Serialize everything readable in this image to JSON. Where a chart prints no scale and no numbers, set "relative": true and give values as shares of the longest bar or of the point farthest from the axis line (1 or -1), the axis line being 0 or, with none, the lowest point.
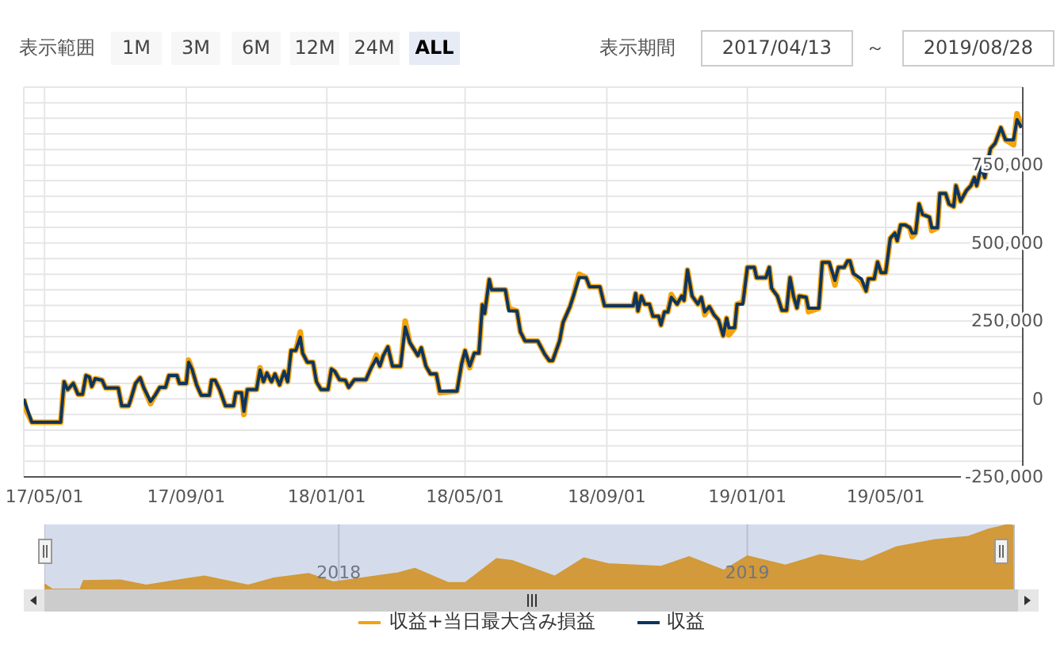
{
  "chart_data": [
    {
      "type": "line",
      "annotations": [
        "表示範囲",
        "1M",
        "3M",
        "6M",
        "12M",
        "24M",
        "ALL",
        "表示期間",
        "2017/04/13",
        "～",
        "2019/08/28"
      ],
      "x": [
        "2017-04-13",
        "2017-04-15",
        "2017-04-20",
        "2017-05-15",
        "2017-05-18",
        "2017-05-21",
        "2017-05-26",
        "2017-05-30",
        "2017-06-03",
        "2017-06-06",
        "2017-06-09",
        "2017-06-11",
        "2017-06-14",
        "2017-06-20",
        "2017-06-23",
        "2017-07-04",
        "2017-07-07",
        "2017-07-13",
        "2017-07-15",
        "2017-07-19",
        "2017-07-23",
        "2017-07-26",
        "2017-08-01",
        "2017-08-05",
        "2017-08-09",
        "2017-08-14",
        "2017-08-17",
        "2017-08-24",
        "2017-08-26",
        "2017-09-01",
        "2017-09-03",
        "2017-09-06",
        "2017-09-10",
        "2017-09-14",
        "2017-09-21",
        "2017-09-23",
        "2017-09-26",
        "2017-09-30",
        "2017-10-05",
        "2017-10-12",
        "2017-10-14",
        "2017-10-19",
        "2017-10-21",
        "2017-10-24",
        "2017-11-01",
        "2017-11-04",
        "2017-11-07",
        "2017-11-10",
        "2017-11-14",
        "2017-11-17",
        "2017-11-21",
        "2017-11-25",
        "2017-11-28",
        "2017-12-01",
        "2017-12-05",
        "2017-12-09",
        "2017-12-11",
        "2017-12-15",
        "2017-12-20",
        "2017-12-23",
        "2017-12-27",
        "2018-01-02",
        "2018-01-05",
        "2018-01-08",
        "2018-01-12",
        "2018-01-17",
        "2018-01-20",
        "2018-01-25",
        "2018-02-04",
        "2018-02-08",
        "2018-02-13",
        "2018-02-16",
        "2018-02-19",
        "2018-02-23",
        "2018-02-27",
        "2018-03-06",
        "2018-03-10",
        "2018-03-14",
        "2018-03-21",
        "2018-03-24",
        "2018-03-28",
        "2018-04-01",
        "2018-04-06",
        "2018-04-09",
        "2018-04-24",
        "2018-04-28",
        "2018-05-01",
        "2018-05-05",
        "2018-05-09",
        "2018-05-13",
        "2018-05-16",
        "2018-05-18",
        "2018-05-22",
        "2018-05-24",
        "2018-06-05",
        "2018-06-08",
        "2018-06-15",
        "2018-06-18",
        "2018-06-22",
        "2018-06-26",
        "2018-07-03",
        "2018-07-09",
        "2018-07-13",
        "2018-07-16",
        "2018-07-22",
        "2018-07-25",
        "2018-07-31",
        "2018-08-03",
        "2018-08-08",
        "2018-08-14",
        "2018-08-17",
        "2018-08-26",
        "2018-08-30",
        "2018-09-24",
        "2018-09-26",
        "2018-09-28",
        "2018-10-01",
        "2018-10-04",
        "2018-10-08",
        "2018-10-11",
        "2018-10-16",
        "2018-10-18",
        "2018-10-21",
        "2018-10-24",
        "2018-10-27",
        "2018-11-01",
        "2018-11-05",
        "2018-11-07",
        "2018-11-10",
        "2018-11-14",
        "2018-11-19",
        "2018-11-22",
        "2018-11-25",
        "2018-11-29",
        "2018-12-03",
        "2018-12-07",
        "2018-12-11",
        "2018-12-14",
        "2018-12-16",
        "2018-12-21",
        "2018-12-23",
        "2018-12-28",
        "2019-01-01",
        "2019-01-07",
        "2019-01-09",
        "2019-01-17",
        "2019-01-20",
        "2019-01-22",
        "2019-01-27",
        "2019-01-31",
        "2019-02-04",
        "2019-02-07",
        "2019-02-10",
        "2019-02-13",
        "2019-02-15",
        "2019-02-21",
        "2019-02-23",
        "2019-03-04",
        "2019-03-07",
        "2019-03-13",
        "2019-03-18",
        "2019-03-21",
        "2019-03-26",
        "2019-03-29",
        "2019-03-31",
        "2019-04-03",
        "2019-04-10",
        "2019-04-14",
        "2019-04-16",
        "2019-04-21",
        "2019-04-24",
        "2019-04-27",
        "2019-05-01",
        "2019-05-05",
        "2019-05-09",
        "2019-05-11",
        "2019-05-14",
        "2019-05-18",
        "2019-05-22",
        "2019-05-24",
        "2019-05-27",
        "2019-05-30",
        "2019-06-02",
        "2019-06-08",
        "2019-06-10",
        "2019-06-15",
        "2019-06-17",
        "2019-06-22",
        "2019-06-25",
        "2019-06-29",
        "2019-07-01",
        "2019-07-05",
        "2019-07-10",
        "2019-07-14",
        "2019-07-17",
        "2019-07-19",
        "2019-07-23",
        "2019-07-26",
        "2019-07-31",
        "2019-08-04",
        "2019-08-09",
        "2019-08-13",
        "2019-08-20",
        "2019-08-23",
        "2019-08-27"
      ],
      "series": [
        {
          "name": "収益+当日最大含み損益",
          "color": "#f5a30a",
          "values": [
            0,
            -35000,
            -75000,
            -75000,
            55000,
            30000,
            50000,
            15000,
            15000,
            75000,
            70000,
            40000,
            65000,
            60000,
            35000,
            35000,
            -22000,
            -22000,
            0,
            50000,
            68000,
            37000,
            -15000,
            12000,
            37000,
            37000,
            75000,
            75000,
            50000,
            50000,
            125000,
            96000,
            45000,
            12000,
            12000,
            60000,
            60000,
            30000,
            -22000,
            -22000,
            20000,
            20000,
            -50000,
            30000,
            30000,
            100000,
            55000,
            83000,
            55000,
            80000,
            45000,
            88000,
            55000,
            155000,
            155000,
            215000,
            147000,
            118000,
            118000,
            55000,
            30000,
            30000,
            96000,
            88000,
            62000,
            60000,
            37000,
            62000,
            62000,
            96000,
            140000,
            105000,
            139000,
            167000,
            105000,
            105000,
            250000,
            181000,
            139000,
            164000,
            105000,
            80000,
            80000,
            20000,
            25000,
            113000,
            155000,
            100000,
            147000,
            147000,
            302000,
            274000,
            383000,
            350000,
            350000,
            290000,
            282000,
            215000,
            186000,
            186000,
            186000,
            144000,
            123000,
            123000,
            186000,
            245000,
            296000,
            330000,
            400000,
            389000,
            360000,
            360000,
            299000,
            299000,
            338000,
            282000,
            330000,
            304000,
            304000,
            265000,
            265000,
            237000,
            279000,
            279000,
            335000,
            304000,
            330000,
            316000,
            414000,
            330000,
            304000,
            326000,
            270000,
            296000,
            270000,
            253000,
            203000,
            259000,
            205000,
            228000,
            304000,
            310000,
            422000,
            422000,
            389000,
            389000,
            422000,
            355000,
            330000,
            284000,
            284000,
            389000,
            330000,
            292000,
            330000,
            326000,
            280000,
            291000,
            438000,
            438000,
            365000,
            422000,
            422000,
            443000,
            443000,
            402000,
            375000,
            346000,
            385000,
            385000,
            439000,
            405000,
            405000,
            515000,
            532000,
            507000,
            558000,
            558000,
            549000,
            520000,
            532000,
            625000,
            592000,
            583000,
            540000,
            549000,
            659000,
            659000,
            625000,
            617000,
            684000,
            634000,
            668000,
            684000,
            710000,
            684000,
            744000,
            710000,
            803000,
            820000,
            870000,
            831000,
            815000,
            915000,
            870000
          ]
        },
        {
          "name": "収益",
          "color": "#0d3560",
          "values": [
            0,
            -22000,
            -75000,
            -75000,
            55000,
            30000,
            50000,
            15000,
            15000,
            75000,
            70000,
            40000,
            65000,
            60000,
            35000,
            35000,
            -22000,
            -22000,
            0,
            50000,
            68000,
            37000,
            -8000,
            12000,
            37000,
            37000,
            75000,
            75000,
            50000,
            50000,
            118000,
            96000,
            45000,
            12000,
            12000,
            60000,
            60000,
            30000,
            -22000,
            -22000,
            20000,
            20000,
            -40000,
            30000,
            30000,
            93000,
            55000,
            83000,
            55000,
            80000,
            45000,
            88000,
            55000,
            155000,
            155000,
            198000,
            147000,
            118000,
            118000,
            55000,
            30000,
            30000,
            96000,
            88000,
            62000,
            60000,
            37000,
            62000,
            62000,
            96000,
            130000,
            105000,
            139000,
            167000,
            105000,
            105000,
            231000,
            181000,
            139000,
            164000,
            105000,
            80000,
            80000,
            25000,
            25000,
            113000,
            155000,
            105000,
            147000,
            147000,
            302000,
            274000,
            383000,
            350000,
            350000,
            282000,
            282000,
            215000,
            186000,
            186000,
            186000,
            144000,
            123000,
            123000,
            186000,
            245000,
            296000,
            330000,
            389000,
            389000,
            360000,
            360000,
            299000,
            299000,
            338000,
            282000,
            330000,
            304000,
            304000,
            265000,
            265000,
            237000,
            279000,
            279000,
            326000,
            304000,
            330000,
            316000,
            414000,
            330000,
            304000,
            326000,
            279000,
            296000,
            270000,
            253000,
            203000,
            259000,
            228000,
            228000,
            304000,
            304000,
            422000,
            422000,
            389000,
            389000,
            422000,
            355000,
            330000,
            284000,
            284000,
            389000,
            330000,
            292000,
            330000,
            326000,
            291000,
            291000,
            438000,
            438000,
            380000,
            422000,
            422000,
            443000,
            443000,
            402000,
            385000,
            346000,
            385000,
            385000,
            439000,
            405000,
            405000,
            515000,
            532000,
            507000,
            558000,
            558000,
            549000,
            532000,
            532000,
            625000,
            592000,
            583000,
            549000,
            549000,
            659000,
            659000,
            625000,
            617000,
            684000,
            634000,
            668000,
            684000,
            710000,
            684000,
            744000,
            710000,
            803000,
            820000,
            870000,
            831000,
            831000,
            896000,
            870000
          ]
        }
      ],
      "xlim": [
        "2017-04-13",
        "2019-08-28"
      ],
      "xticks": [
        {
          "value": "2017-05-01",
          "label": "17/05/01"
        },
        {
          "value": "2017-09-01",
          "label": "17/09/01"
        },
        {
          "value": "2018-01-01",
          "label": "18/01/01"
        },
        {
          "value": "2018-05-01",
          "label": "18/05/01"
        },
        {
          "value": "2018-09-01",
          "label": "18/09/01"
        },
        {
          "value": "2019-01-01",
          "label": "19/01/01"
        },
        {
          "value": "2019-05-01",
          "label": "19/05/01"
        }
      ],
      "ylim": [
        -250000,
        1000000
      ],
      "yticks": [
        {
          "value": -250000,
          "label": "-250,000"
        },
        {
          "value": -200000,
          "label": null
        },
        {
          "value": -150000,
          "label": null
        },
        {
          "value": -100000,
          "label": null
        },
        {
          "value": -50000,
          "label": null
        },
        0,
        {
          "value": 50000,
          "label": null
        },
        {
          "value": 100000,
          "label": null
        },
        {
          "value": 150000,
          "label": null
        },
        {
          "value": 200000,
          "label": null
        },
        {
          "value": 250000,
          "label": "250,000"
        },
        {
          "value": 300000,
          "label": null
        },
        {
          "value": 350000,
          "label": null
        },
        {
          "value": 400000,
          "label": null
        },
        {
          "value": 450000,
          "label": null
        },
        {
          "value": 500000,
          "label": "500,000"
        },
        {
          "value": 550000,
          "label": null
        },
        {
          "value": 600000,
          "label": null
        },
        {
          "value": 650000,
          "label": null
        },
        {
          "value": 700000,
          "label": null
        },
        {
          "value": 750000,
          "label": "750,000"
        },
        {
          "value": 800000,
          "label": null
        },
        {
          "value": 850000,
          "label": null
        },
        {
          "value": 900000,
          "label": null
        },
        {
          "value": 950000,
          "label": null
        },
        {
          "value": 1000000,
          "label": null
        }
      ],
      "grid": true,
      "legend": "bottom"
    },
    {
      "type": "area",
      "relative": true,
      "color": "#d29a3a",
      "x": [
        "2017-04-13",
        "2017-04-20",
        "2017-05-15",
        "2017-05-18",
        "2017-06-20",
        "2017-07-13",
        "2017-08-17",
        "2017-09-03",
        "2017-10-12",
        "2017-11-04",
        "2017-12-05",
        "2017-12-27",
        "2018-02-23",
        "2018-03-10",
        "2018-04-09",
        "2018-04-24",
        "2018-05-22",
        "2018-06-05",
        "2018-07-13",
        "2018-08-08",
        "2018-08-30",
        "2018-10-16",
        "2018-11-10",
        "2018-12-11",
        "2019-01-01",
        "2019-02-04",
        "2019-03-07",
        "2019-04-14",
        "2019-05-14",
        "2019-06-17",
        "2019-07-17",
        "2019-08-04",
        "2019-08-23",
        "2019-08-27"
      ],
      "values": [
        0.08,
        0,
        0,
        0.13,
        0.14,
        0.06,
        0.16,
        0.2,
        0.06,
        0.17,
        0.24,
        0.11,
        0.25,
        0.32,
        0.1,
        0.1,
        0.47,
        0.44,
        0.2,
        0.48,
        0.39,
        0.35,
        0.5,
        0.29,
        0.51,
        0.37,
        0.53,
        0.43,
        0.65,
        0.76,
        0.81,
        0.92,
        1,
        0.97
      ],
      "xlim": [
        "2017-04-13",
        "2019-08-28"
      ],
      "xticks": [
        {
          "value": "2018-01-01",
          "label": "2018"
        },
        {
          "value": "2019-01-01",
          "label": "2019"
        }
      ],
      "grid": "x",
      "tick_labels": "x"
    }
  ]
}
